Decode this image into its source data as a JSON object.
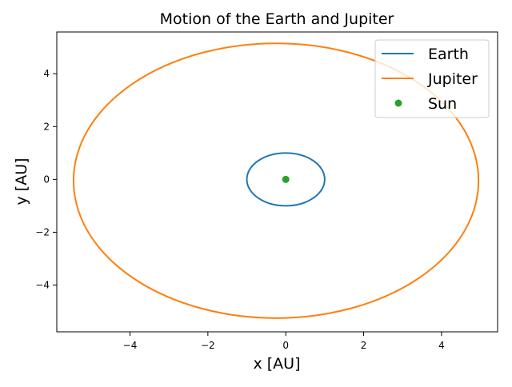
{
  "chart_data": {
    "type": "line",
    "title": "Motion of the Earth and Jupiter",
    "xlabel": "x [AU]",
    "ylabel": "y [AU]",
    "xlim": [
      -5.88,
      5.44
    ],
    "ylim": [
      -5.77,
      5.58
    ],
    "xticks": [
      -4,
      -2,
      0,
      2,
      4
    ],
    "yticks": [
      -4,
      -2,
      0,
      2,
      4
    ],
    "grid": false,
    "legend_position": "top-right",
    "series": [
      {
        "name": "Earth",
        "kind": "orbit",
        "color": "#1f77b4",
        "center": [
          0,
          0
        ],
        "semi_axes": [
          1.0,
          1.0
        ]
      },
      {
        "name": "Jupiter",
        "kind": "orbit",
        "color": "#ff7f0e",
        "center": [
          -0.25,
          -0.05
        ],
        "semi_axes": [
          5.2,
          5.2
        ]
      },
      {
        "name": "Sun",
        "kind": "point",
        "color": "#2ca02c",
        "x": [
          0
        ],
        "y": [
          0
        ]
      }
    ]
  }
}
